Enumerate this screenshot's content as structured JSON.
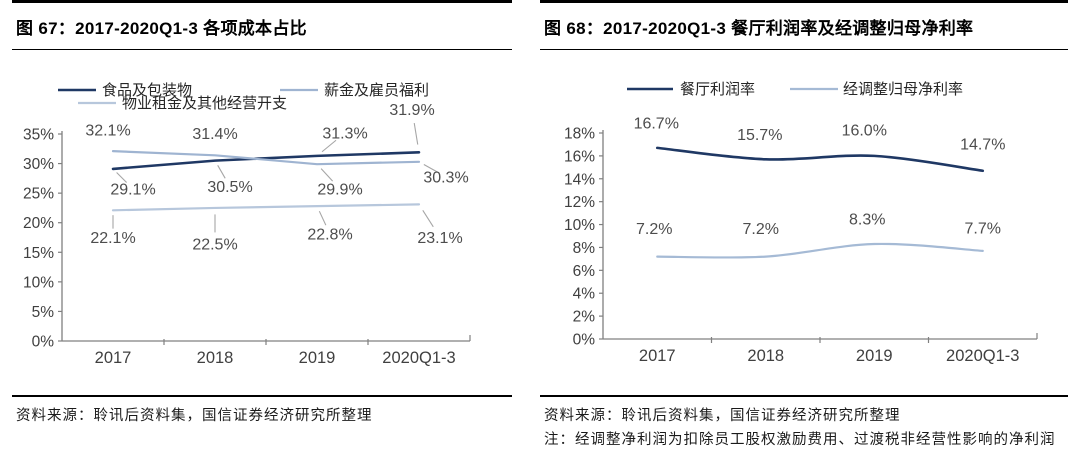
{
  "page": {
    "background": "#ffffff",
    "text_color": "#000000",
    "accent_dark": "#1F3864",
    "accent_light": "#A5BAD5",
    "label_gray": "#4d4d4d",
    "axis_gray": "#808080"
  },
  "panels": [
    {
      "id": "figure-67",
      "title": "图 67：2017-2020Q1-3 各项成本占比",
      "source": "资料来源：聆讯后资料集，国信证券经济研究所整理"
    },
    {
      "id": "figure-68",
      "title": "图 68：2017-2020Q1-3 餐厅利润率及经调整归母净利率",
      "source": "资料来源：聆讯后资料集，国信证券经济研究所整理",
      "note": "注：经调整净利润为扣除员工股权激励费用、过渡税非经营性影响的净利润"
    }
  ],
  "chart_data": [
    {
      "type": "line",
      "line_style": "straight",
      "title": "2017-2020Q1-3 各项成本占比",
      "categories": [
        "2017",
        "2018",
        "2019",
        "2020Q1-3"
      ],
      "xlabel": "",
      "ylabel": "",
      "ylim": [
        0,
        35
      ],
      "ytick_step": 5,
      "yticklabels": [
        "0%",
        "5%",
        "10%",
        "15%",
        "20%",
        "25%",
        "30%",
        "35%"
      ],
      "grid": false,
      "legend_position": "top",
      "series": [
        {
          "name": "食品及包装物",
          "color": "#1F3864",
          "values": [
            29.1,
            30.5,
            31.3,
            31.9
          ],
          "labels": [
            "29.1%",
            "30.5%",
            "31.3%",
            "31.9%"
          ]
        },
        {
          "name": "薪金及雇员福利",
          "color": "#9FB4D1",
          "values": [
            32.1,
            31.4,
            29.9,
            30.3
          ],
          "labels": [
            "32.1%",
            "31.4%",
            "29.9%",
            "30.3%"
          ]
        },
        {
          "name": "物业租金及其他经营开支",
          "color": "#B7C7DC",
          "values": [
            22.1,
            22.5,
            22.8,
            23.1
          ],
          "labels": [
            "22.1%",
            "22.5%",
            "22.8%",
            "23.1%"
          ]
        }
      ]
    },
    {
      "type": "line",
      "line_style": "smooth",
      "title": "2017-2020Q1-3 餐厅利润率及经调整归母净利率",
      "categories": [
        "2017",
        "2018",
        "2019",
        "2020Q1-3"
      ],
      "xlabel": "",
      "ylabel": "",
      "ylim": [
        0,
        18
      ],
      "ytick_step": 2,
      "yticklabels": [
        "0%",
        "2%",
        "4%",
        "6%",
        "8%",
        "10%",
        "12%",
        "14%",
        "16%",
        "18%"
      ],
      "grid": false,
      "legend_position": "top",
      "series": [
        {
          "name": "餐厅利润率",
          "color": "#1F3864",
          "values": [
            16.7,
            15.7,
            16.0,
            14.7
          ],
          "labels": [
            "16.7%",
            "15.7%",
            "16.0%",
            "14.7%"
          ]
        },
        {
          "name": "经调整归母净利率",
          "color": "#A5BAD5",
          "values": [
            7.2,
            7.2,
            8.3,
            7.7
          ],
          "labels": [
            "7.2%",
            "7.2%",
            "8.3%",
            "7.7%"
          ]
        }
      ]
    }
  ]
}
